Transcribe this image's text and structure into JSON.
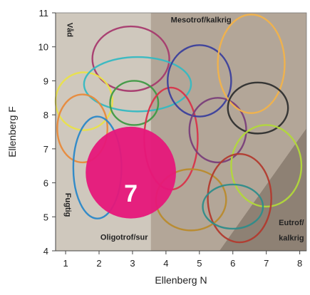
{
  "chart_data": {
    "type": "scatter",
    "title": "",
    "xlabel": "Ellenberg N",
    "ylabel": "Ellenberg F",
    "xlim": [
      0.7,
      8.2
    ],
    "ylim": [
      4,
      11
    ],
    "x_ticks": [
      "1",
      "2",
      "3",
      "4",
      "5",
      "6",
      "7",
      "8"
    ],
    "y_ticks": [
      "4",
      "5",
      "6",
      "7",
      "8",
      "9",
      "10",
      "11"
    ],
    "zones": [
      {
        "key": "vad",
        "label": "Våd"
      },
      {
        "key": "mesotrof",
        "label": "Mesotrof/kalkrig"
      },
      {
        "key": "oligotrof",
        "label": "Oligotrof/sur"
      },
      {
        "key": "eutrof1",
        "label": "Eutrof/"
      },
      {
        "key": "eutrof2",
        "label": "kalkrig"
      },
      {
        "key": "fugtig",
        "label": "Fugtig"
      }
    ],
    "ellipses": [
      {
        "id": "3",
        "cx": 2.95,
        "cy": 9.65,
        "rx": 1.15,
        "ry": 0.95,
        "color": "#a63a6e"
      },
      {
        "id": "4",
        "cx": 1.55,
        "cy": 8.4,
        "rx": 0.85,
        "ry": 0.85,
        "color": "#e9e24a"
      },
      {
        "id": "5",
        "cx": 3.15,
        "cy": 8.9,
        "rx": 1.6,
        "ry": 0.8,
        "color": "#35b9c2"
      },
      {
        "id": "6",
        "cx": 3.05,
        "cy": 8.35,
        "rx": 0.72,
        "ry": 0.65,
        "color": "#3f9a45"
      },
      {
        "id": "8",
        "cx": 4.15,
        "cy": 7.3,
        "rx": 0.8,
        "ry": 1.5,
        "color": "#d8334a"
      },
      {
        "id": "9",
        "cx": 5.0,
        "cy": 9.0,
        "rx": 0.95,
        "ry": 1.05,
        "color": "#3b3f9c"
      },
      {
        "id": "10",
        "cx": 5.55,
        "cy": 7.55,
        "rx": 0.85,
        "ry": 0.95,
        "color": "#7a3f7a"
      },
      {
        "id": "11",
        "cx": 4.75,
        "cy": 5.5,
        "rx": 1.05,
        "ry": 0.9,
        "color": "#b98a2c"
      },
      {
        "id": "12",
        "cx": 6.55,
        "cy": 9.5,
        "rx": 1.0,
        "ry": 1.45,
        "color": "#f2b24a"
      },
      {
        "id": "13",
        "cx": 6.75,
        "cy": 8.2,
        "rx": 0.9,
        "ry": 0.75,
        "color": "#2f2f2f"
      },
      {
        "id": "14",
        "cx": 7.0,
        "cy": 6.5,
        "rx": 1.05,
        "ry": 1.2,
        "color": "#b2d83a"
      },
      {
        "id": "15",
        "cx": 6.2,
        "cy": 5.55,
        "rx": 0.95,
        "ry": 1.3,
        "color": "#b23a2e"
      },
      {
        "id": "16",
        "cx": 6.0,
        "cy": 5.3,
        "rx": 0.9,
        "ry": 0.65,
        "color": "#2e8c8a"
      },
      {
        "id": "a",
        "cx": 1.5,
        "cy": 7.6,
        "rx": 0.75,
        "ry": 1.0,
        "color": "#e88a3a"
      },
      {
        "id": "b",
        "cx": 1.95,
        "cy": 6.45,
        "rx": 0.72,
        "ry": 1.5,
        "color": "#2a88c8"
      }
    ],
    "highlight": {
      "id": "7",
      "cx": 2.95,
      "cy": 6.3,
      "rx": 1.35,
      "ry": 1.35,
      "color": "#e6177a"
    },
    "colors": {
      "left_bg": "#cfc8bd",
      "right_bg": "#b3a698",
      "corner_bg": "#8e8174",
      "grid_border": "#ffffff"
    }
  }
}
